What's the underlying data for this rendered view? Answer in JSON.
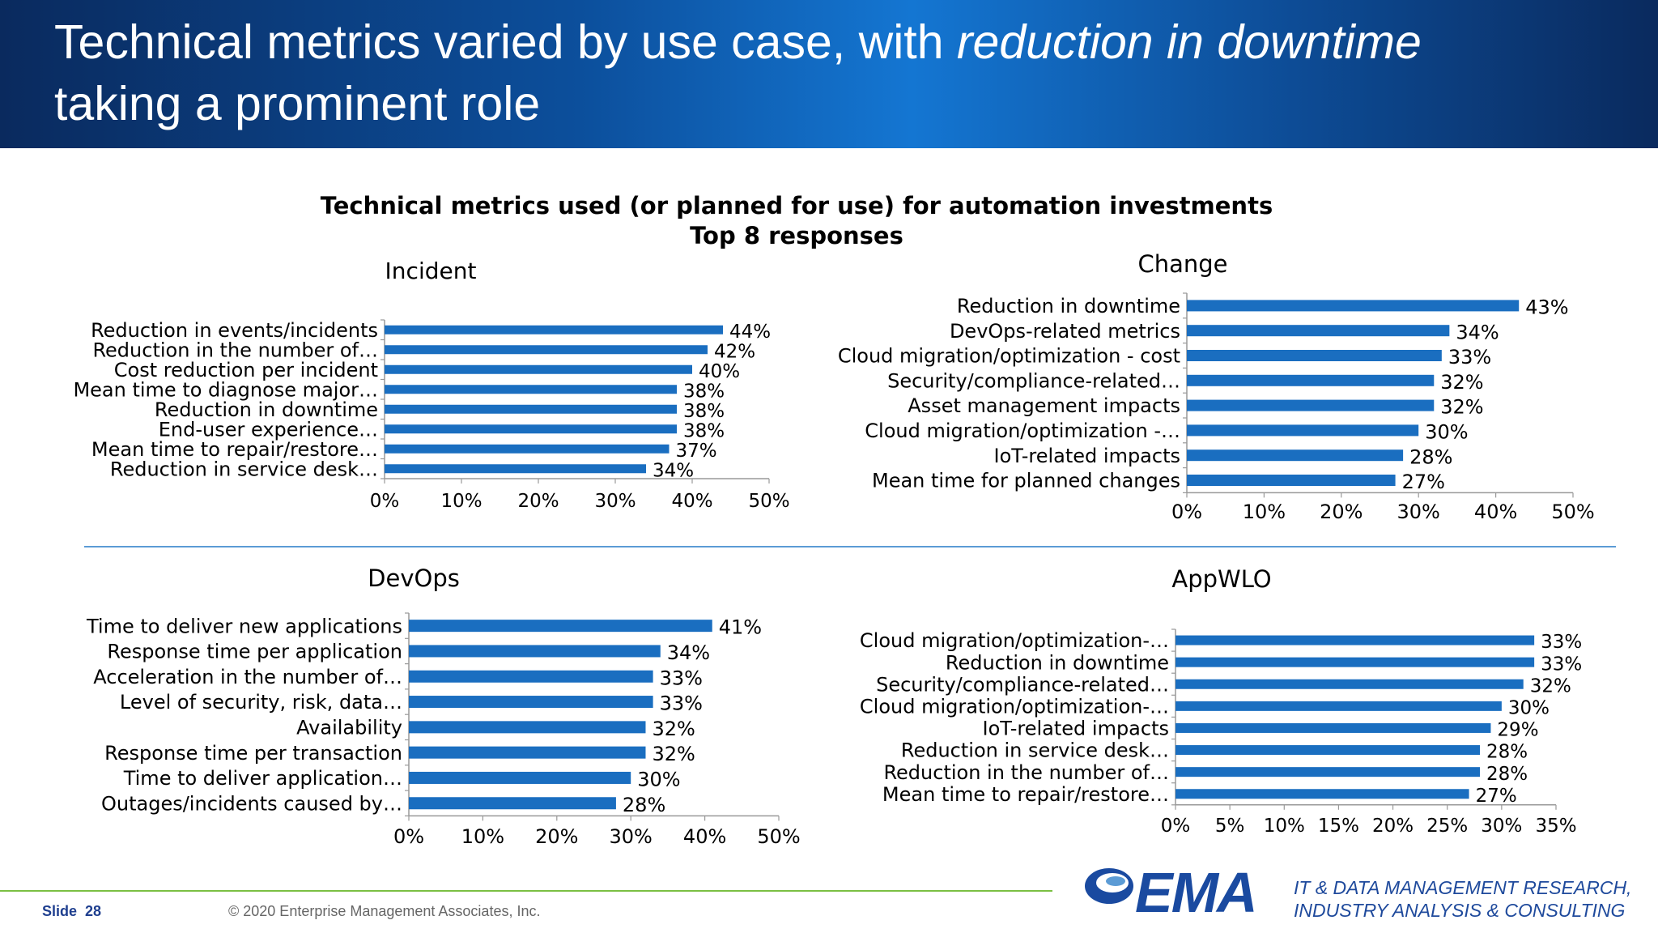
{
  "header": {
    "title_part1": "Technical metrics varied by use case, with ",
    "title_emphasis": "reduction in downtime",
    "title_part2": "taking a prominent role"
  },
  "main_title_line1": "Technical metrics used (or planned for use) for automation investments",
  "main_title_line2": "Top 8 responses",
  "colors": {
    "bar": "#1a6ec0",
    "header": "#0c4f9c",
    "divider": "#5b9bd5",
    "footer_line": "#7bc043"
  },
  "chart_data": [
    {
      "type": "bar",
      "orientation": "horizontal",
      "title": "Incident",
      "categories": [
        "Reduction in events/incidents",
        "Reduction in the number of…",
        "Cost reduction per incident",
        "Mean time to diagnose major…",
        "Reduction in downtime",
        "End-user experience…",
        "Mean time to repair/restore…",
        "Reduction in service desk…"
      ],
      "values": [
        44,
        42,
        40,
        38,
        38,
        38,
        37,
        34
      ],
      "value_labels": [
        "44%",
        "42%",
        "40%",
        "38%",
        "38%",
        "38%",
        "37%",
        "34%"
      ],
      "xlim": [
        0,
        50
      ],
      "ticks": [
        "0%",
        "10%",
        "20%",
        "30%",
        "40%",
        "50%"
      ]
    },
    {
      "type": "bar",
      "orientation": "horizontal",
      "title": "Change",
      "categories": [
        "Reduction in downtime",
        "DevOps-related metrics",
        "Cloud migration/optimization - cost",
        "Security/compliance-related…",
        "Asset management impacts",
        "Cloud migration/optimization -…",
        "IoT-related impacts",
        "Mean time for planned changes"
      ],
      "values": [
        43,
        34,
        33,
        32,
        32,
        30,
        28,
        27
      ],
      "value_labels": [
        "43%",
        "34%",
        "33%",
        "32%",
        "32%",
        "30%",
        "28%",
        "27%"
      ],
      "xlim": [
        0,
        50
      ],
      "ticks": [
        "0%",
        "10%",
        "20%",
        "30%",
        "40%",
        "50%"
      ]
    },
    {
      "type": "bar",
      "orientation": "horizontal",
      "title": "DevOps",
      "categories": [
        "Time to deliver new applications",
        "Response time per application",
        "Acceleration in the number of…",
        "Level of security, risk, data…",
        "Availability",
        "Response time per transaction",
        "Time to deliver application…",
        "Outages/incidents caused by…"
      ],
      "values": [
        41,
        34,
        33,
        33,
        32,
        32,
        30,
        28
      ],
      "value_labels": [
        "41%",
        "34%",
        "33%",
        "33%",
        "32%",
        "32%",
        "30%",
        "28%"
      ],
      "xlim": [
        0,
        50
      ],
      "ticks": [
        "0%",
        "10%",
        "20%",
        "30%",
        "40%",
        "50%"
      ]
    },
    {
      "type": "bar",
      "orientation": "horizontal",
      "title": "AppWLO",
      "categories": [
        "Cloud migration/optimization-…",
        "Reduction in downtime",
        "Security/compliance-related…",
        "Cloud migration/optimization-…",
        "IoT-related impacts",
        "Reduction in service desk…",
        "Reduction in the number of…",
        "Mean time to repair/restore…"
      ],
      "values": [
        33,
        33,
        32,
        30,
        29,
        28,
        28,
        27
      ],
      "value_labels": [
        "33%",
        "33%",
        "32%",
        "30%",
        "29%",
        "28%",
        "28%",
        "27%"
      ],
      "xlim": [
        0,
        35
      ],
      "ticks": [
        "0%",
        "5%",
        "10%",
        "15%",
        "20%",
        "25%",
        "30%",
        "35%"
      ]
    }
  ],
  "footer": {
    "slide_label": "Slide",
    "slide_number": "28",
    "copyright": "© 2020 Enterprise Management Associates, Inc.",
    "logo_text": "EMA",
    "tagline_line1": "IT & DATA MANAGEMENT RESEARCH,",
    "tagline_line2": "INDUSTRY ANALYSIS & CONSULTING"
  }
}
